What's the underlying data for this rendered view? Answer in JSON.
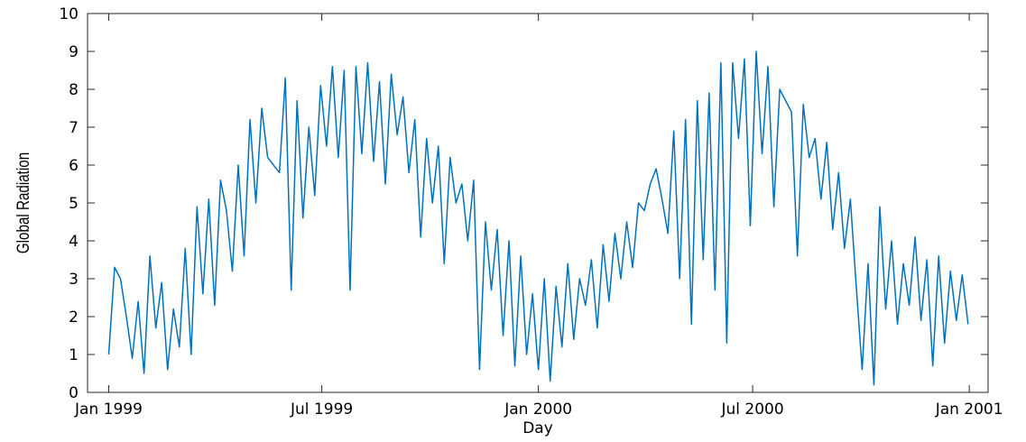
{
  "chart_data": {
    "type": "line",
    "xlabel": "Day",
    "ylabel": "Global Radiation",
    "xlim": [
      -18,
      747
    ],
    "ylim": [
      0,
      10
    ],
    "xticks": [
      {
        "value": 0,
        "label": "Jan 1999"
      },
      {
        "value": 181,
        "label": "Jul 1999"
      },
      {
        "value": 365,
        "label": "Jan 2000"
      },
      {
        "value": 547,
        "label": "Jul 2000"
      },
      {
        "value": 731,
        "label": "Jan 2001"
      }
    ],
    "yticks": [
      0,
      1,
      2,
      3,
      4,
      5,
      6,
      7,
      8,
      9,
      10
    ],
    "color": "#0072bd",
    "x": [
      0,
      5,
      10,
      15,
      20,
      25,
      30,
      35,
      40,
      45,
      50,
      55,
      60,
      65,
      70,
      75,
      80,
      85,
      90,
      95,
      100,
      105,
      110,
      115,
      120,
      125,
      130,
      135,
      140,
      145,
      150,
      155,
      160,
      165,
      170,
      175,
      180,
      185,
      190,
      195,
      200,
      205,
      210,
      215,
      220,
      225,
      230,
      235,
      240,
      245,
      250,
      255,
      260,
      265,
      270,
      275,
      280,
      285,
      290,
      295,
      300,
      305,
      310,
      315,
      320,
      325,
      330,
      335,
      340,
      345,
      350,
      355,
      360,
      365,
      370,
      375,
      380,
      385,
      390,
      395,
      400,
      405,
      410,
      415,
      420,
      425,
      430,
      435,
      440,
      445,
      450,
      455,
      460,
      465,
      470,
      475,
      480,
      485,
      490,
      495,
      500,
      505,
      510,
      515,
      520,
      525,
      530,
      535,
      540,
      545,
      550,
      555,
      560,
      565,
      570,
      575,
      580,
      585,
      590,
      595,
      600,
      605,
      610,
      615,
      620,
      625,
      630,
      635,
      640,
      645,
      650,
      655,
      660,
      665,
      670,
      675,
      680,
      685,
      690,
      695,
      700,
      705,
      710,
      715,
      720,
      725,
      730
    ],
    "values": [
      1.0,
      3.3,
      3.0,
      2.0,
      0.9,
      2.4,
      0.5,
      3.6,
      1.7,
      2.9,
      0.6,
      2.2,
      1.2,
      3.8,
      1.0,
      4.9,
      2.6,
      5.1,
      2.3,
      5.6,
      4.8,
      3.2,
      6.0,
      3.6,
      7.2,
      5.0,
      7.5,
      6.2,
      6.0,
      5.8,
      8.3,
      2.7,
      7.7,
      4.6,
      7.0,
      5.2,
      8.1,
      6.5,
      8.6,
      6.2,
      8.5,
      2.7,
      8.6,
      6.3,
      8.7,
      6.1,
      8.2,
      5.5,
      8.4,
      6.8,
      7.8,
      5.8,
      7.2,
      4.1,
      6.7,
      5.0,
      6.5,
      3.4,
      6.2,
      5.0,
      5.5,
      4.0,
      5.6,
      0.6,
      4.5,
      2.7,
      4.3,
      1.5,
      4.0,
      0.7,
      3.6,
      1.0,
      2.6,
      0.6,
      3.0,
      0.3,
      2.8,
      1.2,
      3.4,
      1.4,
      3.0,
      2.3,
      3.5,
      1.7,
      3.9,
      2.4,
      4.2,
      3.0,
      4.5,
      3.3,
      5.0,
      4.8,
      5.5,
      5.9,
      5.1,
      4.2,
      6.9,
      3.0,
      7.2,
      1.8,
      7.7,
      3.5,
      7.9,
      2.7,
      8.7,
      1.3,
      8.7,
      6.7,
      8.8,
      4.4,
      9.0,
      6.3,
      8.6,
      4.9,
      8.0,
      7.7,
      7.4,
      3.6,
      7.6,
      6.2,
      6.7,
      5.1,
      6.6,
      4.3,
      5.8,
      3.8,
      5.1,
      2.8,
      0.6,
      3.4,
      0.2,
      4.9,
      2.2,
      4.0,
      1.8,
      3.4,
      2.3,
      4.1,
      1.9,
      3.5,
      0.7,
      3.6,
      1.3,
      3.2,
      1.9,
      3.1,
      1.8
    ]
  }
}
